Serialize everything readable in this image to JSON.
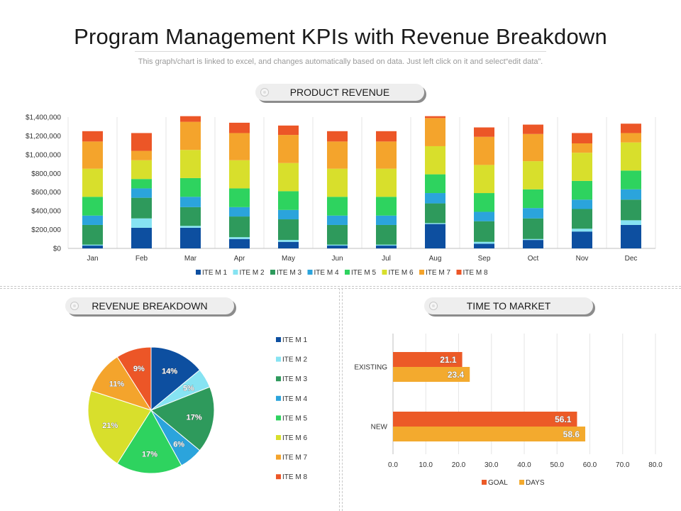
{
  "header": {
    "title": "Program Management KPIs with Revenue Breakdown",
    "subtitle": "This graph/chart is linked to excel, and changes automatically based on data. Just left click on it and select“edit data”."
  },
  "sections": {
    "product_revenue": "PRODUCT REVENUE",
    "revenue_breakdown": "REVENUE BREAKDOWN",
    "time_to_market": "TIME TO MARKET"
  },
  "colors": {
    "item1": "#0d4fa0",
    "item2": "#86e3f2",
    "item3": "#2e9a5c",
    "item4": "#2ba4dc",
    "item5": "#2ed35f",
    "item6": "#d8df2c",
    "item7": "#f4a42c",
    "item8": "#ec5627",
    "goal": "#ec5a27",
    "days": "#f3aa2e"
  },
  "chart_data": [
    {
      "type": "bar",
      "stacked": true,
      "categories": [
        "Jan",
        "Feb",
        "Mar",
        "Apr",
        "May",
        "Jun",
        "Jul",
        "Aug",
        "Sep",
        "Oct",
        "Nov",
        "Dec"
      ],
      "ylim": [
        0,
        1400000
      ],
      "yticks": [
        0,
        200000,
        400000,
        600000,
        800000,
        1000000,
        1200000,
        1400000
      ],
      "ytick_labels": [
        "$0",
        "$200,000",
        "$400,000",
        "$600,000",
        "$800,000",
        "$1,000,000",
        "$1,200,000",
        "$1,400,000"
      ],
      "legend_position": "bottom",
      "grid": true,
      "series": [
        {
          "name": "ITE M 1",
          "values": [
            30000,
            220000,
            220000,
            100000,
            70000,
            30000,
            30000,
            260000,
            50000,
            90000,
            180000,
            250000
          ]
        },
        {
          "name": "ITE M 2",
          "values": [
            10000,
            100000,
            20000,
            20000,
            20000,
            10000,
            10000,
            10000,
            20000,
            10000,
            30000,
            50000
          ]
        },
        {
          "name": "ITE M 3",
          "values": [
            210000,
            220000,
            200000,
            220000,
            220000,
            210000,
            210000,
            210000,
            220000,
            220000,
            210000,
            220000
          ]
        },
        {
          "name": "ITE M 4",
          "values": [
            100000,
            100000,
            110000,
            100000,
            100000,
            100000,
            100000,
            110000,
            100000,
            110000,
            100000,
            110000
          ]
        },
        {
          "name": "ITE M 5",
          "values": [
            200000,
            100000,
            200000,
            200000,
            200000,
            200000,
            200000,
            200000,
            200000,
            200000,
            200000,
            200000
          ]
        },
        {
          "name": "ITE M 6",
          "values": [
            300000,
            200000,
            300000,
            300000,
            300000,
            300000,
            300000,
            300000,
            300000,
            300000,
            300000,
            300000
          ]
        },
        {
          "name": "ITE M 7",
          "values": [
            290000,
            100000,
            300000,
            290000,
            300000,
            290000,
            290000,
            300000,
            300000,
            290000,
            100000,
            100000
          ]
        },
        {
          "name": "ITE M 8",
          "values": [
            110000,
            190000,
            60000,
            110000,
            100000,
            110000,
            110000,
            20000,
            100000,
            100000,
            110000,
            100000
          ]
        }
      ]
    },
    {
      "type": "pie",
      "legend_position": "right",
      "labels": [
        "ITE M 1",
        "ITE M 2",
        "ITE M 3",
        "ITE M 4",
        "ITE M 5",
        "ITE M 6",
        "ITE M 7",
        "ITE M 8"
      ],
      "values": [
        14,
        5,
        17,
        6,
        17,
        21,
        11,
        9
      ],
      "value_labels": [
        "14%",
        "5%",
        "17%",
        "6%",
        "17%",
        "21%",
        "11%",
        "9%"
      ]
    },
    {
      "type": "bar",
      "orientation": "horizontal",
      "categories": [
        "EXISTING",
        "NEW"
      ],
      "xlim": [
        0,
        80
      ],
      "xticks": [
        0,
        10,
        20,
        30,
        40,
        50,
        60,
        70,
        80
      ],
      "xtick_labels": [
        "0.0",
        "10.0",
        "20.0",
        "30.0",
        "40.0",
        "50.0",
        "60.0",
        "70.0",
        "80.0"
      ],
      "legend_position": "bottom",
      "grid": true,
      "series": [
        {
          "name": "GOAL",
          "values": [
            21.1,
            56.1
          ],
          "value_labels": [
            "21.1",
            "56.1"
          ]
        },
        {
          "name": "DAYS",
          "values": [
            23.4,
            58.6
          ],
          "value_labels": [
            "23.4",
            "58.6"
          ]
        }
      ]
    }
  ]
}
